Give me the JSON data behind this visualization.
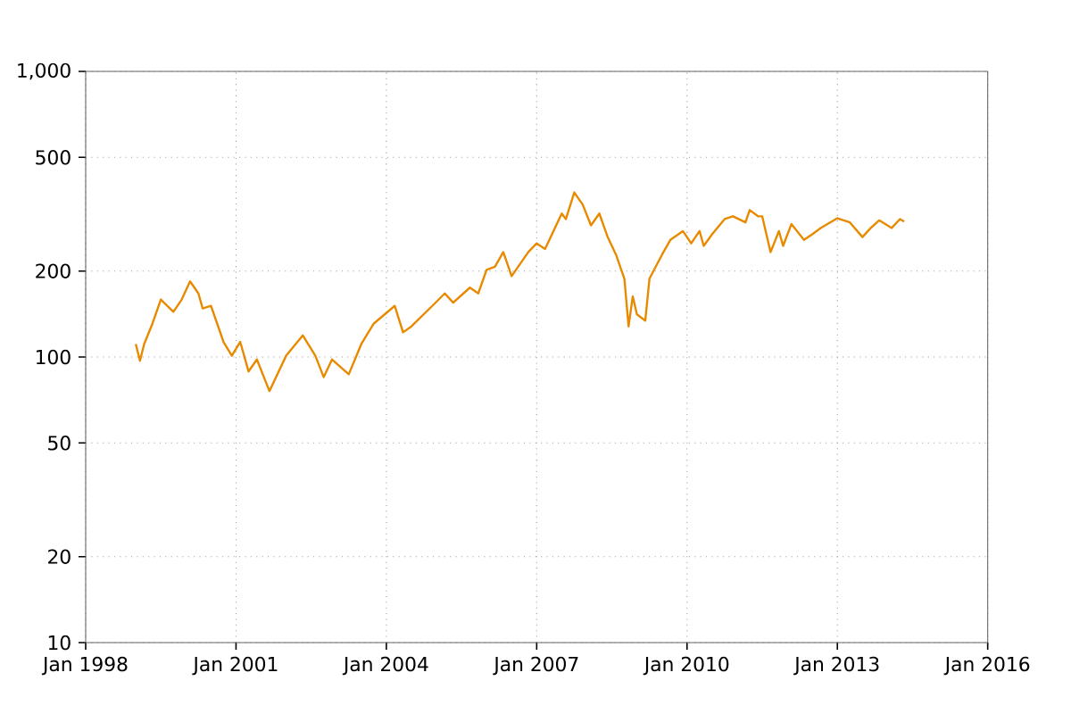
{
  "chart_data": {
    "type": "line",
    "log": "y",
    "grid": true,
    "marker": "none",
    "line_style": "solid",
    "xlim": [
      "1998-01",
      "2016-01"
    ],
    "xticks": [
      {
        "value": "1998-01",
        "label": "Jan 1998"
      },
      {
        "value": "2001-01",
        "label": "Jan 2001"
      },
      {
        "value": "2004-01",
        "label": "Jan 2004"
      },
      {
        "value": "2007-01",
        "label": "Jan 2007"
      },
      {
        "value": "2010-01",
        "label": "Jan 2010"
      },
      {
        "value": "2013-01",
        "label": "Jan 2013"
      },
      {
        "value": "2016-01",
        "label": "Jan 2016"
      }
    ],
    "ylim": [
      10,
      1000
    ],
    "yticks": [
      10,
      20,
      50,
      100,
      200,
      500,
      {
        "value": 1000,
        "label": "1,000"
      }
    ],
    "x": [
      "1999-01",
      "1999-02",
      "1999-03",
      "1999-05",
      "1999-07",
      "1999-10",
      "1999-12",
      "2000-02",
      "2000-04",
      "2000-05",
      "2000-07",
      "2000-10",
      "2000-12",
      "2001-02",
      "2001-04",
      "2001-06",
      "2001-09",
      "2002-01",
      "2002-05",
      "2002-08",
      "2002-10",
      "2002-12",
      "2003-04",
      "2003-07",
      "2003-10",
      "2004-03",
      "2004-05",
      "2004-07",
      "2004-12",
      "2005-03",
      "2005-05",
      "2005-09",
      "2005-11",
      "2006-01",
      "2006-03",
      "2006-05",
      "2006-07",
      "2006-11",
      "2007-01",
      "2007-03",
      "2007-07",
      "2007-08",
      "2007-10",
      "2007-12",
      "2008-02",
      "2008-04",
      "2008-06",
      "2008-08",
      "2008-10",
      "2008-11",
      "2008-12",
      "2009-01",
      "2009-03",
      "2009-04",
      "2009-07",
      "2009-09",
      "2009-12",
      "2010-02",
      "2010-04",
      "2010-05",
      "2010-07",
      "2010-10",
      "2010-12",
      "2011-03",
      "2011-04",
      "2011-06",
      "2011-07",
      "2011-09",
      "2011-11",
      "2011-12",
      "2012-02",
      "2012-05",
      "2012-07",
      "2012-09",
      "2013-01",
      "2013-04",
      "2013-07",
      "2013-09",
      "2013-11",
      "2014-02",
      "2014-04",
      "2014-05"
    ],
    "series": [
      {
        "color": "#e88a00",
        "values": [
          111,
          97,
          111,
          131,
          159,
          144,
          159,
          184,
          167,
          148,
          151,
          113,
          101,
          113,
          89,
          98,
          76,
          101,
          119,
          101,
          85,
          98,
          87,
          111,
          131,
          151,
          122,
          128,
          151,
          167,
          155,
          175,
          167,
          202,
          207,
          233,
          192,
          233,
          250,
          239,
          318,
          304,
          377,
          342,
          289,
          318,
          263,
          228,
          188,
          128,
          163,
          141,
          134,
          188,
          228,
          257,
          276,
          250,
          276,
          245,
          269,
          304,
          311,
          296,
          327,
          311,
          311,
          233,
          276,
          245,
          292,
          257,
          269,
          283,
          306,
          296,
          263,
          283,
          301,
          283,
          304,
          298
        ]
      }
    ]
  }
}
